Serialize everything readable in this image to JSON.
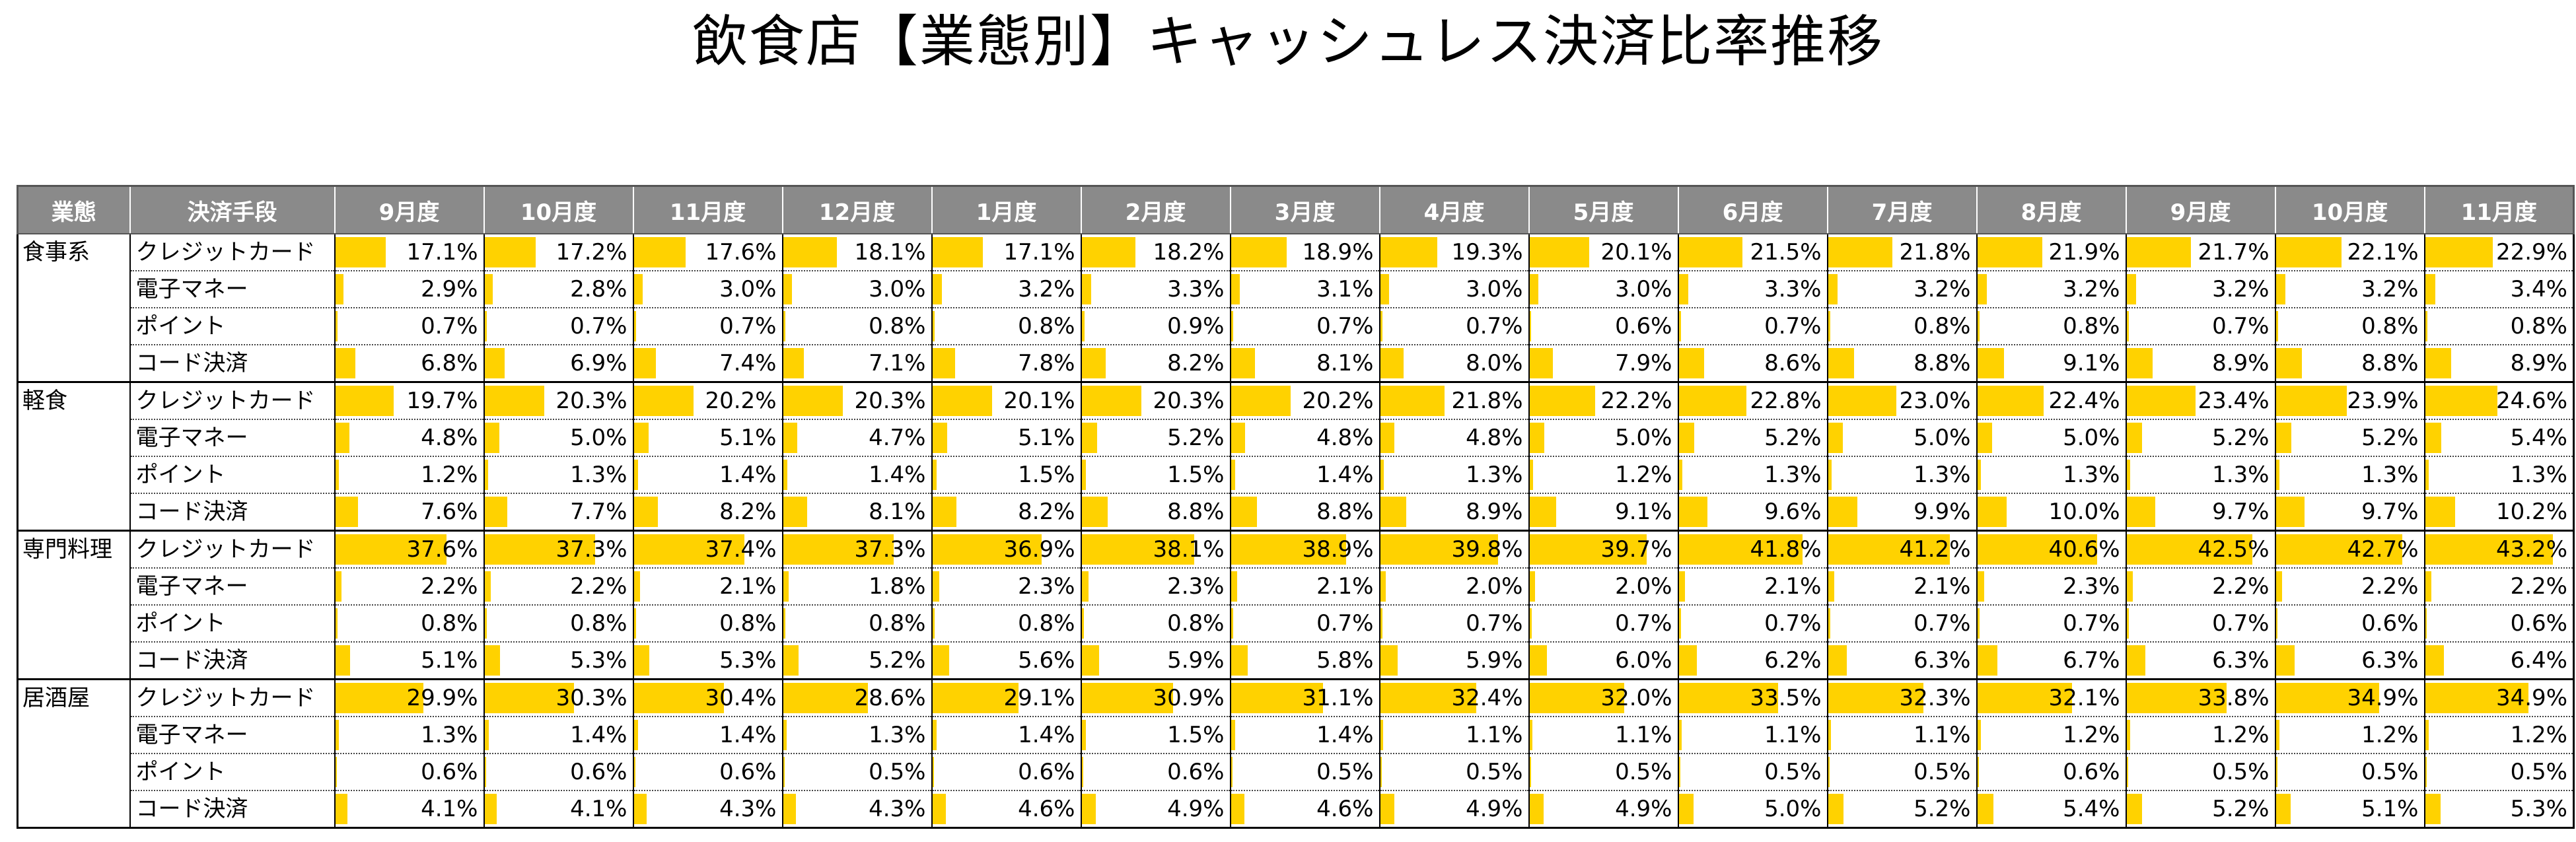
{
  "title": "飲食店【業態別】キャッシュレス決済比率推移",
  "chart_data": {
    "type": "table",
    "title": "飲食店【業態別】キャッシュレス決済比率推移",
    "headers": [
      "業態",
      "決済手段",
      "9月度",
      "10月度",
      "11月度",
      "12月度",
      "1月度",
      "2月度",
      "3月度",
      "4月度",
      "5月度",
      "6月度",
      "7月度",
      "8月度",
      "9月度",
      "10月度",
      "11月度"
    ],
    "bar_scale_max": 50,
    "bar_color": "#ffd200",
    "groups": [
      {
        "category": "食事系",
        "rows": [
          {
            "method": "クレジットカード",
            "values": [
              "17.1%",
              "17.2%",
              "17.6%",
              "18.1%",
              "17.1%",
              "18.2%",
              "18.9%",
              "19.3%",
              "20.1%",
              "21.5%",
              "21.8%",
              "21.9%",
              "21.7%",
              "22.1%",
              "22.9%"
            ]
          },
          {
            "method": "電子マネー",
            "values": [
              "2.9%",
              "2.8%",
              "3.0%",
              "3.0%",
              "3.2%",
              "3.3%",
              "3.1%",
              "3.0%",
              "3.0%",
              "3.3%",
              "3.2%",
              "3.2%",
              "3.2%",
              "3.2%",
              "3.4%"
            ]
          },
          {
            "method": "ポイント",
            "values": [
              "0.7%",
              "0.7%",
              "0.7%",
              "0.8%",
              "0.8%",
              "0.9%",
              "0.7%",
              "0.7%",
              "0.6%",
              "0.7%",
              "0.8%",
              "0.8%",
              "0.7%",
              "0.8%",
              "0.8%"
            ]
          },
          {
            "method": "コード決済",
            "values": [
              "6.8%",
              "6.9%",
              "7.4%",
              "7.1%",
              "7.8%",
              "8.2%",
              "8.1%",
              "8.0%",
              "7.9%",
              "8.6%",
              "8.8%",
              "9.1%",
              "8.9%",
              "8.8%",
              "8.9%"
            ]
          }
        ]
      },
      {
        "category": "軽食",
        "rows": [
          {
            "method": "クレジットカード",
            "values": [
              "19.7%",
              "20.3%",
              "20.2%",
              "20.3%",
              "20.1%",
              "20.3%",
              "20.2%",
              "21.8%",
              "22.2%",
              "22.8%",
              "23.0%",
              "22.4%",
              "23.4%",
              "23.9%",
              "24.6%"
            ]
          },
          {
            "method": "電子マネー",
            "values": [
              "4.8%",
              "5.0%",
              "5.1%",
              "4.7%",
              "5.1%",
              "5.2%",
              "4.8%",
              "4.8%",
              "5.0%",
              "5.2%",
              "5.0%",
              "5.0%",
              "5.2%",
              "5.2%",
              "5.4%"
            ]
          },
          {
            "method": "ポイント",
            "values": [
              "1.2%",
              "1.3%",
              "1.4%",
              "1.4%",
              "1.5%",
              "1.5%",
              "1.4%",
              "1.3%",
              "1.2%",
              "1.3%",
              "1.3%",
              "1.3%",
              "1.3%",
              "1.3%",
              "1.3%"
            ]
          },
          {
            "method": "コード決済",
            "values": [
              "7.6%",
              "7.7%",
              "8.2%",
              "8.1%",
              "8.2%",
              "8.8%",
              "8.8%",
              "8.9%",
              "9.1%",
              "9.6%",
              "9.9%",
              "10.0%",
              "9.7%",
              "9.7%",
              "10.2%"
            ]
          }
        ]
      },
      {
        "category": "専門料理",
        "rows": [
          {
            "method": "クレジットカード",
            "values": [
              "37.6%",
              "37.3%",
              "37.4%",
              "37.3%",
              "36.9%",
              "38.1%",
              "38.9%",
              "39.8%",
              "39.7%",
              "41.8%",
              "41.2%",
              "40.6%",
              "42.5%",
              "42.7%",
              "43.2%"
            ]
          },
          {
            "method": "電子マネー",
            "values": [
              "2.2%",
              "2.2%",
              "2.1%",
              "1.8%",
              "2.3%",
              "2.3%",
              "2.1%",
              "2.0%",
              "2.0%",
              "2.1%",
              "2.1%",
              "2.3%",
              "2.2%",
              "2.2%",
              "2.2%"
            ]
          },
          {
            "method": "ポイント",
            "values": [
              "0.8%",
              "0.8%",
              "0.8%",
              "0.8%",
              "0.8%",
              "0.8%",
              "0.7%",
              "0.7%",
              "0.7%",
              "0.7%",
              "0.7%",
              "0.7%",
              "0.7%",
              "0.6%",
              "0.6%"
            ]
          },
          {
            "method": "コード決済",
            "values": [
              "5.1%",
              "5.3%",
              "5.3%",
              "5.2%",
              "5.6%",
              "5.9%",
              "5.8%",
              "5.9%",
              "6.0%",
              "6.2%",
              "6.3%",
              "6.7%",
              "6.3%",
              "6.3%",
              "6.4%"
            ]
          }
        ]
      },
      {
        "category": "居酒屋",
        "rows": [
          {
            "method": "クレジットカード",
            "values": [
              "29.9%",
              "30.3%",
              "30.4%",
              "28.6%",
              "29.1%",
              "30.9%",
              "31.1%",
              "32.4%",
              "32.0%",
              "33.5%",
              "32.3%",
              "32.1%",
              "33.8%",
              "34.9%",
              "34.9%"
            ]
          },
          {
            "method": "電子マネー",
            "values": [
              "1.3%",
              "1.4%",
              "1.4%",
              "1.3%",
              "1.4%",
              "1.5%",
              "1.4%",
              "1.1%",
              "1.1%",
              "1.1%",
              "1.1%",
              "1.2%",
              "1.2%",
              "1.2%",
              "1.2%"
            ]
          },
          {
            "method": "ポイント",
            "values": [
              "0.6%",
              "0.6%",
              "0.6%",
              "0.5%",
              "0.6%",
              "0.6%",
              "0.5%",
              "0.5%",
              "0.5%",
              "0.5%",
              "0.5%",
              "0.6%",
              "0.5%",
              "0.5%",
              "0.5%"
            ]
          },
          {
            "method": "コード決済",
            "values": [
              "4.1%",
              "4.1%",
              "4.3%",
              "4.3%",
              "4.6%",
              "4.9%",
              "4.6%",
              "4.9%",
              "4.9%",
              "5.0%",
              "5.2%",
              "5.4%",
              "5.2%",
              "5.1%",
              "5.3%"
            ]
          }
        ]
      }
    ]
  }
}
